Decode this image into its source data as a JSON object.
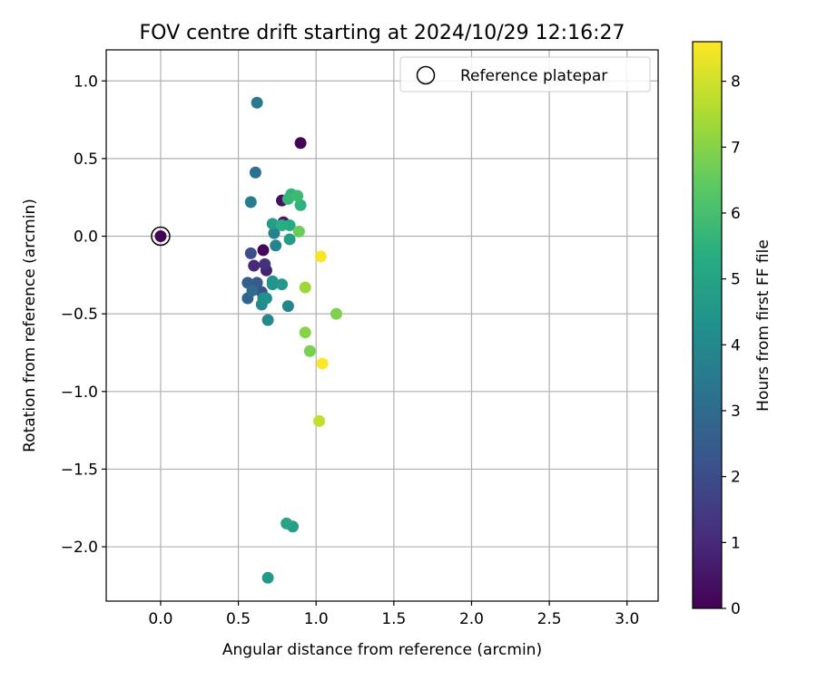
{
  "chart_data": {
    "type": "scatter",
    "title": "FOV centre drift starting at 2024/10/29 12:16:27",
    "xlabel": "Angular distance from reference (arcmin)",
    "ylabel": "Rotation from reference (arcmin)",
    "xlim": [
      -0.35,
      3.2
    ],
    "ylim": [
      -2.35,
      1.2
    ],
    "x_ticks": [
      0.0,
      0.5,
      1.0,
      1.5,
      2.0,
      2.5,
      3.0
    ],
    "y_ticks": [
      -2.0,
      -1.5,
      -1.0,
      -0.5,
      0.0,
      0.5,
      1.0
    ],
    "x_tick_labels": [
      "0.0",
      "0.5",
      "1.0",
      "1.5",
      "2.0",
      "2.5",
      "3.0"
    ],
    "y_tick_labels": [
      "−2.0",
      "−1.5",
      "−1.0",
      "−0.5",
      "0.0",
      "0.5",
      "1.0"
    ],
    "grid": true,
    "legend": {
      "location": "top-right",
      "entries": [
        "Reference platepar"
      ]
    },
    "reference_point": {
      "x": 0.0,
      "y": 0.0,
      "hours": 0.0
    },
    "colorbar": {
      "label": "Hours from first FF file",
      "range": [
        0,
        8.6
      ],
      "ticks": [
        0,
        1,
        2,
        3,
        4,
        5,
        6,
        7,
        8
      ],
      "tick_labels": [
        "0",
        "1",
        "2",
        "3",
        "4",
        "5",
        "6",
        "7",
        "8"
      ],
      "colormap": "viridis"
    },
    "points": [
      {
        "x": 0.0,
        "y": 0.0,
        "hours": 0.05
      },
      {
        "x": 0.9,
        "y": 0.6,
        "hours": 0.1
      },
      {
        "x": 0.66,
        "y": -0.09,
        "hours": 0.15
      },
      {
        "x": 0.78,
        "y": 0.23,
        "hours": 0.4
      },
      {
        "x": 0.79,
        "y": 0.09,
        "hours": 0.6
      },
      {
        "x": 0.68,
        "y": -0.22,
        "hours": 0.8
      },
      {
        "x": 0.6,
        "y": -0.19,
        "hours": 1.0
      },
      {
        "x": 0.67,
        "y": -0.18,
        "hours": 1.2
      },
      {
        "x": 0.58,
        "y": -0.11,
        "hours": 2.0
      },
      {
        "x": 0.65,
        "y": -0.36,
        "hours": 2.2
      },
      {
        "x": 0.62,
        "y": -0.3,
        "hours": 2.4
      },
      {
        "x": 0.56,
        "y": -0.3,
        "hours": 2.6
      },
      {
        "x": 0.56,
        "y": -0.4,
        "hours": 2.8
      },
      {
        "x": 0.59,
        "y": -0.35,
        "hours": 3.0
      },
      {
        "x": 0.61,
        "y": 0.41,
        "hours": 3.2
      },
      {
        "x": 0.62,
        "y": 0.86,
        "hours": 3.5
      },
      {
        "x": 0.58,
        "y": 0.22,
        "hours": 3.6
      },
      {
        "x": 0.73,
        "y": 0.02,
        "hours": 3.7
      },
      {
        "x": 0.74,
        "y": -0.06,
        "hours": 3.8
      },
      {
        "x": 0.82,
        "y": -0.45,
        "hours": 3.9
      },
      {
        "x": 0.69,
        "y": -0.54,
        "hours": 4.0
      },
      {
        "x": 0.65,
        "y": -0.44,
        "hours": 4.1
      },
      {
        "x": 0.66,
        "y": -0.4,
        "hours": 4.2
      },
      {
        "x": 0.68,
        "y": -0.4,
        "hours": 4.3
      },
      {
        "x": 0.72,
        "y": -0.29,
        "hours": 4.4
      },
      {
        "x": 0.72,
        "y": -0.31,
        "hours": 4.5
      },
      {
        "x": 0.78,
        "y": -0.31,
        "hours": 4.6
      },
      {
        "x": 0.72,
        "y": 0.08,
        "hours": 4.7
      },
      {
        "x": 0.83,
        "y": -0.02,
        "hours": 4.8
      },
      {
        "x": 0.69,
        "y": -2.2,
        "hours": 4.6
      },
      {
        "x": 0.85,
        "y": -1.87,
        "hours": 4.8
      },
      {
        "x": 0.81,
        "y": -1.85,
        "hours": 5.0
      },
      {
        "x": 0.83,
        "y": 0.07,
        "hours": 5.2
      },
      {
        "x": 0.78,
        "y": 0.07,
        "hours": 5.4
      },
      {
        "x": 0.9,
        "y": 0.2,
        "hours": 5.5
      },
      {
        "x": 0.84,
        "y": 0.27,
        "hours": 5.6
      },
      {
        "x": 0.82,
        "y": 0.24,
        "hours": 5.7
      },
      {
        "x": 0.88,
        "y": 0.26,
        "hours": 5.8
      },
      {
        "x": 0.89,
        "y": 0.03,
        "hours": 6.6
      },
      {
        "x": 0.96,
        "y": -0.74,
        "hours": 6.8
      },
      {
        "x": 1.13,
        "y": -0.5,
        "hours": 6.9
      },
      {
        "x": 0.93,
        "y": -0.62,
        "hours": 7.0
      },
      {
        "x": 0.93,
        "y": -0.33,
        "hours": 7.3
      },
      {
        "x": 1.02,
        "y": -1.19,
        "hours": 7.8
      },
      {
        "x": 1.03,
        "y": -0.13,
        "hours": 8.5
      },
      {
        "x": 1.04,
        "y": -0.82,
        "hours": 8.6
      }
    ]
  }
}
